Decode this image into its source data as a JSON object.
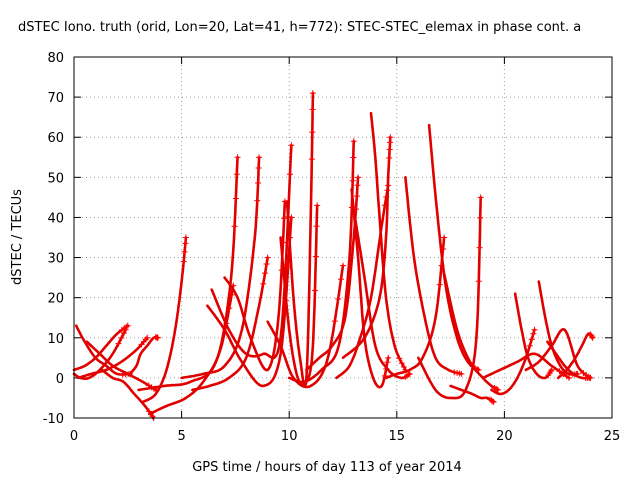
{
  "chart_data": {
    "type": "line",
    "title": "dSTEC Iono. truth (orid, Lon=20, Lat=41, h=772): STEC-STEC_elemax in phase cont. a",
    "xlabel": "GPS time / hours of day 113 of year 2014",
    "ylabel": "dSTEC  / TECUs",
    "xlim": [
      0,
      25
    ],
    "ylim": [
      -10,
      80
    ],
    "xticks": [
      "0",
      "5",
      "10",
      "15",
      "20",
      "25"
    ],
    "yticks": [
      "-10",
      "0",
      "10",
      "20",
      "30",
      "40",
      "50",
      "60",
      "70",
      "80"
    ],
    "grid": true,
    "marker": "+",
    "color": "#ff0000",
    "series": [
      {
        "x": [
          0.0,
          0.3,
          0.7,
          1.2,
          1.8,
          2.4
        ],
        "y": [
          1,
          0,
          0,
          2,
          6,
          12
        ]
      },
      {
        "x": [
          0.1,
          0.5,
          1.0,
          1.5,
          2.0,
          2.6
        ],
        "y": [
          13,
          9,
          5,
          3,
          1,
          1
        ]
      },
      {
        "x": [
          0.2,
          0.8,
          1.5,
          2.2,
          2.9,
          3.4
        ],
        "y": [
          0,
          1,
          2,
          4,
          7,
          10
        ]
      },
      {
        "x": [
          0.6,
          1.2,
          1.8,
          2.5,
          3.2,
          3.8
        ],
        "y": [
          9,
          6,
          3,
          1,
          -1,
          -3
        ]
      },
      {
        "x": [
          1.3,
          1.8,
          2.3,
          2.8,
          3.3,
          3.7
        ],
        "y": [
          2,
          0,
          -1,
          -4,
          -7,
          -10
        ]
      },
      {
        "x": [
          3.2,
          3.8,
          4.3,
          4.7,
          5.0,
          5.2
        ],
        "y": [
          -6,
          -4,
          2,
          12,
          24,
          35
        ]
      },
      {
        "x": [
          3.5,
          4.3,
          5.2,
          6.0,
          6.8,
          7.4
        ],
        "y": [
          -9,
          -7,
          -5,
          -1,
          7,
          23
        ]
      },
      {
        "x": [
          3.0,
          4.2,
          5.4,
          6.6,
          7.3,
          7.6
        ],
        "y": [
          -3,
          -2,
          -1,
          4,
          25,
          55
        ]
      },
      {
        "x": [
          5.0,
          6.0,
          7.0,
          7.8,
          8.4,
          8.6
        ],
        "y": [
          0,
          1,
          3,
          12,
          35,
          55
        ]
      },
      {
        "x": [
          5.5,
          6.3,
          7.2,
          8.0,
          8.6,
          9.0
        ],
        "y": [
          -3,
          -2,
          0,
          5,
          18,
          30
        ]
      },
      {
        "x": [
          6.2,
          7.0,
          7.8,
          8.8,
          9.6,
          10.1
        ],
        "y": [
          18,
          12,
          4,
          -2,
          6,
          40
        ]
      },
      {
        "x": [
          6.4,
          7.2,
          8.0,
          8.8,
          9.6,
          10.1
        ],
        "y": [
          22,
          12,
          6,
          6,
          10,
          58
        ]
      },
      {
        "x": [
          7.0,
          7.6,
          8.2,
          9.0,
          9.5,
          9.8
        ],
        "y": [
          25,
          20,
          10,
          2,
          15,
          44
        ]
      },
      {
        "x": [
          9.6,
          10.0,
          10.4,
          10.8,
          11.1,
          11.3
        ],
        "y": [
          35,
          12,
          0,
          -1,
          8,
          43
        ]
      },
      {
        "x": [
          9.9,
          10.2,
          10.5,
          10.8,
          11.0,
          11.1
        ],
        "y": [
          44,
          20,
          5,
          0,
          40,
          71
        ]
      },
      {
        "x": [
          9.0,
          9.6,
          10.2,
          11.0,
          11.8,
          12.5
        ],
        "y": [
          14,
          8,
          0,
          -2,
          5,
          28
        ]
      },
      {
        "x": [
          10.0,
          10.7,
          11.5,
          12.3,
          12.8,
          13.0
        ],
        "y": [
          0,
          -1,
          2,
          8,
          30,
          59
        ]
      },
      {
        "x": [
          10.8,
          11.4,
          12.0,
          12.6,
          13.0,
          13.2
        ],
        "y": [
          2,
          5,
          8,
          15,
          35,
          50
        ]
      },
      {
        "x": [
          12.2,
          12.8,
          13.3,
          13.8,
          14.3,
          14.6
        ],
        "y": [
          0,
          3,
          10,
          20,
          38,
          48
        ]
      },
      {
        "x": [
          12.9,
          13.2,
          13.5,
          13.9,
          14.3,
          14.6
        ],
        "y": [
          47,
          30,
          10,
          0,
          -2,
          5
        ]
      },
      {
        "x": [
          13.0,
          13.5,
          14.0,
          14.6,
          15.2,
          15.6
        ],
        "y": [
          42,
          25,
          8,
          2,
          0,
          1
        ]
      },
      {
        "x": [
          13.8,
          14.0,
          14.2,
          14.5,
          14.9,
          15.4
        ],
        "y": [
          66,
          55,
          40,
          20,
          8,
          2
        ]
      },
      {
        "x": [
          12.5,
          13.5,
          14.2,
          14.5,
          14.6,
          14.7
        ],
        "y": [
          5,
          10,
          20,
          35,
          50,
          60
        ]
      },
      {
        "x": [
          14.5,
          15.0,
          15.6,
          16.2,
          16.8,
          17.2
        ],
        "y": [
          0,
          1,
          2,
          5,
          15,
          35
        ]
      },
      {
        "x": [
          15.4,
          15.8,
          16.3,
          16.8,
          17.4,
          18.0
        ],
        "y": [
          50,
          30,
          15,
          5,
          2,
          1
        ]
      },
      {
        "x": [
          16.5,
          16.9,
          17.3,
          17.8,
          18.3,
          18.8
        ],
        "y": [
          63,
          40,
          22,
          10,
          4,
          2
        ]
      },
      {
        "x": [
          17.2,
          17.8,
          18.4,
          19.0,
          19.4,
          19.7
        ],
        "y": [
          26,
          12,
          4,
          0,
          -2,
          -3
        ]
      },
      {
        "x": [
          16.0,
          16.8,
          17.5,
          18.2,
          18.7,
          18.9
        ],
        "y": [
          5,
          -3,
          -5,
          -3,
          10,
          45
        ]
      },
      {
        "x": [
          17.5,
          18.0,
          18.5,
          18.9,
          19.2,
          19.5
        ],
        "y": [
          -2,
          -3,
          -4,
          -5,
          -5,
          -6
        ]
      },
      {
        "x": [
          19.4,
          19.8,
          20.2,
          20.6,
          21.0,
          21.4
        ],
        "y": [
          -3,
          -4,
          -3,
          0,
          5,
          12
        ]
      },
      {
        "x": [
          20.5,
          20.8,
          21.1,
          21.5,
          21.9,
          22.2
        ],
        "y": [
          21,
          12,
          5,
          1,
          0,
          2
        ]
      },
      {
        "x": [
          21.6,
          21.9,
          22.2,
          22.6,
          23.0,
          23.4
        ],
        "y": [
          24,
          15,
          8,
          3,
          1,
          1
        ]
      },
      {
        "x": [
          22.0,
          22.4,
          22.8,
          23.2,
          23.6,
          24.0
        ],
        "y": [
          9,
          6,
          3,
          1,
          0,
          0
        ]
      },
      {
        "x": [
          22.5,
          22.9,
          23.3,
          23.6,
          23.9,
          24.1
        ],
        "y": [
          0,
          2,
          5,
          8,
          11,
          10
        ]
      },
      {
        "x": [
          21.0,
          21.6,
          22.2,
          22.8,
          23.4,
          24.0
        ],
        "y": [
          2,
          4,
          8,
          12,
          3,
          0
        ]
      },
      {
        "x": [
          19.0,
          19.8,
          20.6,
          21.4,
          22.2,
          23.0
        ],
        "y": [
          0,
          2,
          4,
          6,
          3,
          0
        ]
      },
      {
        "x": [
          0.0,
          0.5,
          1.0,
          1.5,
          2.0,
          2.5
        ],
        "y": [
          2,
          3,
          5,
          8,
          11,
          13
        ]
      },
      {
        "x": [
          2.6,
          2.9,
          3.1,
          3.4,
          3.7,
          3.9
        ],
        "y": [
          1,
          3,
          6,
          8,
          10,
          10
        ]
      }
    ]
  }
}
